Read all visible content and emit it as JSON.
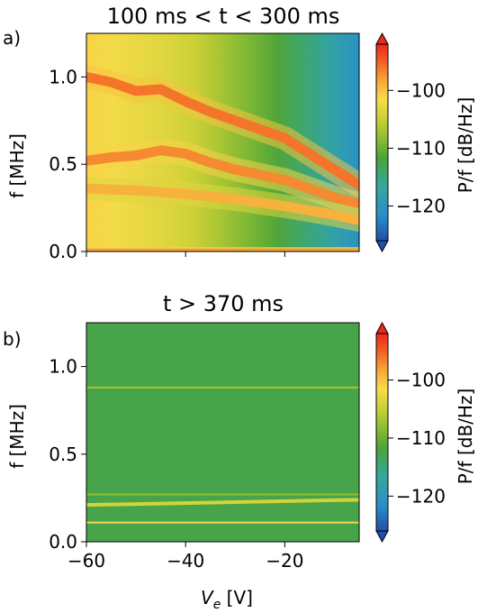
{
  "chart_data": [
    {
      "type": "heatmap",
      "panel_label": "a)",
      "title": "100 ms < t < 300 ms",
      "xlabel": "",
      "ylabel": "f [MHz]",
      "xlim": [
        -60,
        -5
      ],
      "ylim": [
        0.0,
        1.25
      ],
      "xticks": [
        -60,
        -40,
        -20
      ],
      "xticklabels": [
        "",
        "",
        ""
      ],
      "yticks": [
        0.0,
        0.5,
        1.0
      ],
      "yticklabels": [
        "0.0",
        "0.5",
        "1.0"
      ],
      "colorbar": {
        "label": "P/f [dB/Hz]",
        "range": [
          -126,
          -92
        ],
        "ticks": [
          -120,
          -110,
          -100
        ],
        "ticklabels": [
          "−120",
          "−110",
          "−100"
        ],
        "extend": "both",
        "colormap": "jet-like (blue-green-yellow-red)"
      },
      "background_db": {
        "at_x": [
          -60,
          -40,
          -20,
          -5
        ],
        "values": [
          -101,
          -104,
          -112,
          -121
        ]
      },
      "ridges": [
        {
          "x": [
            -60,
            -55,
            -50,
            -45,
            -40,
            -35,
            -30,
            -25,
            -20,
            -15,
            -10,
            -5
          ],
          "f": [
            1.0,
            0.97,
            0.92,
            0.93,
            0.86,
            0.8,
            0.75,
            0.7,
            0.65,
            0.56,
            0.47,
            0.38
          ],
          "db": -96
        },
        {
          "x": [
            -60,
            -55,
            -50,
            -45,
            -40,
            -35,
            -30,
            -25,
            -20,
            -15,
            -10,
            -5
          ],
          "f": [
            0.52,
            0.54,
            0.55,
            0.58,
            0.56,
            0.51,
            0.47,
            0.44,
            0.41,
            0.36,
            0.31,
            0.27
          ],
          "db": -97
        },
        {
          "x": [
            -60,
            -50,
            -40,
            -30,
            -20,
            -10,
            -5
          ],
          "f": [
            0.36,
            0.35,
            0.33,
            0.3,
            0.26,
            0.21,
            0.18
          ],
          "db": -99
        },
        {
          "x": [
            -60,
            -50,
            -40,
            -30,
            -20,
            -5
          ],
          "f": [
            0.01,
            0.01,
            0.01,
            0.01,
            0.01,
            0.01
          ],
          "db": -98
        }
      ]
    },
    {
      "type": "heatmap",
      "panel_label": "b)",
      "title": "t > 370 ms",
      "xlabel": "V",
      "xlabel_sub": "e",
      "xlabel_unit": " [V]",
      "ylabel": "f [MHz]",
      "xlim": [
        -60,
        -5
      ],
      "ylim": [
        0.0,
        1.25
      ],
      "xticks": [
        -60,
        -40,
        -20
      ],
      "xticklabels": [
        "−60",
        "−40",
        "−20"
      ],
      "yticks": [
        0.0,
        0.5,
        1.0
      ],
      "yticklabels": [
        "0.0",
        "0.5",
        "1.0"
      ],
      "colorbar": {
        "label": "P/f [dB/Hz]",
        "range": [
          -126,
          -92
        ],
        "ticks": [
          -120,
          -110,
          -100
        ],
        "ticklabels": [
          "−120",
          "−110",
          "−100"
        ],
        "extend": "both",
        "colormap": "jet-like (blue-green-yellow-red)"
      },
      "background_db": {
        "at_x": [
          -60,
          -5
        ],
        "values": [
          -112.5,
          -112.5
        ]
      },
      "lines": [
        {
          "f": 0.88,
          "db": -107
        },
        {
          "f": 0.27,
          "db": -108
        },
        {
          "f_start": 0.21,
          "f_end": 0.24,
          "db": -104
        },
        {
          "f": 0.11,
          "db": -102
        }
      ]
    }
  ]
}
